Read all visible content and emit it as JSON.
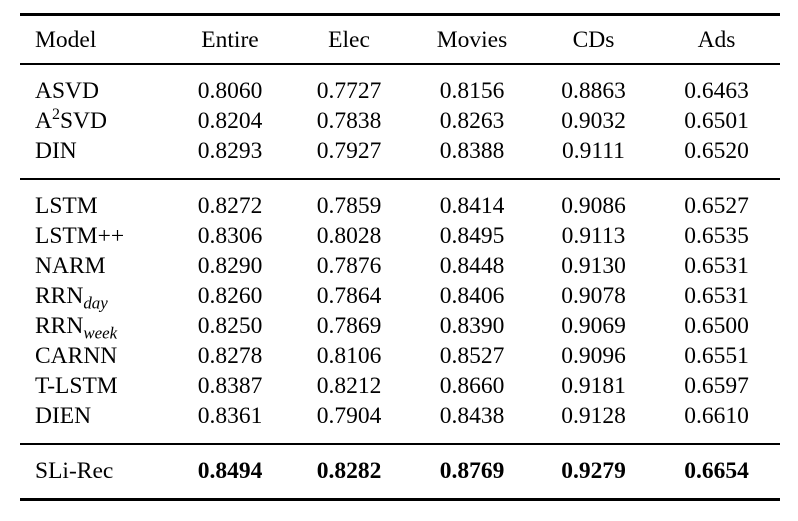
{
  "colors": {
    "background": "#ffffff",
    "text": "#000000",
    "rule": "#000000"
  },
  "table": {
    "columns": [
      "Model",
      "Entire",
      "Elec",
      "Movies",
      "CDs",
      "Ads"
    ],
    "sections": [
      {
        "rows": [
          {
            "model": {
              "base": "ASVD"
            },
            "values": [
              "0.8060",
              "0.7727",
              "0.8156",
              "0.8863",
              "0.6463"
            ]
          },
          {
            "model": {
              "base": "A",
              "sup": "2",
              "post": "SVD"
            },
            "values": [
              "0.8204",
              "0.7838",
              "0.8263",
              "0.9032",
              "0.6501"
            ]
          },
          {
            "model": {
              "base": "DIN"
            },
            "values": [
              "0.8293",
              "0.7927",
              "0.8388",
              "0.9111",
              "0.6520"
            ]
          }
        ]
      },
      {
        "rows": [
          {
            "model": {
              "base": "LSTM"
            },
            "values": [
              "0.8272",
              "0.7859",
              "0.8414",
              "0.9086",
              "0.6527"
            ]
          },
          {
            "model": {
              "base": "LSTM++"
            },
            "values": [
              "0.8306",
              "0.8028",
              "0.8495",
              "0.9113",
              "0.6535"
            ]
          },
          {
            "model": {
              "base": "NARM"
            },
            "values": [
              "0.8290",
              "0.7876",
              "0.8448",
              "0.9130",
              "0.6531"
            ]
          },
          {
            "model": {
              "base": "RRN",
              "sub": "day"
            },
            "values": [
              "0.8260",
              "0.7864",
              "0.8406",
              "0.9078",
              "0.6531"
            ]
          },
          {
            "model": {
              "base": "RRN",
              "sub": "week"
            },
            "values": [
              "0.8250",
              "0.7869",
              "0.8390",
              "0.9069",
              "0.6500"
            ]
          },
          {
            "model": {
              "base": "CARNN"
            },
            "values": [
              "0.8278",
              "0.8106",
              "0.8527",
              "0.9096",
              "0.6551"
            ]
          },
          {
            "model": {
              "base": "T-LSTM"
            },
            "values": [
              "0.8387",
              "0.8212",
              "0.8660",
              "0.9181",
              "0.6597"
            ]
          },
          {
            "model": {
              "base": "DIEN"
            },
            "values": [
              "0.8361",
              "0.7904",
              "0.8438",
              "0.9128",
              "0.6610"
            ]
          }
        ]
      },
      {
        "bold_values": true,
        "rows": [
          {
            "model": {
              "base": "SLi-Rec"
            },
            "values": [
              "0.8494",
              "0.8282",
              "0.8769",
              "0.9279",
              "0.6654"
            ]
          }
        ]
      }
    ]
  }
}
